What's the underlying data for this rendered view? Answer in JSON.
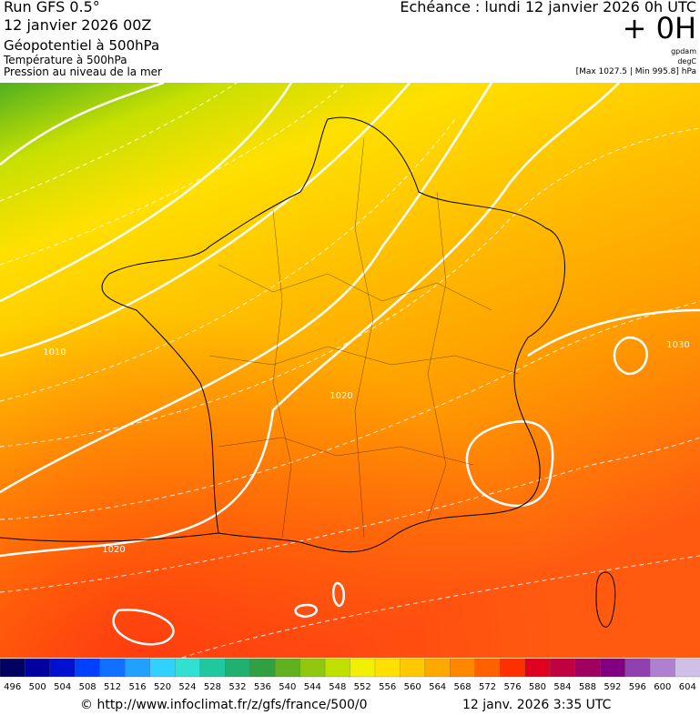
{
  "header": {
    "run": "Run GFS 0.5°",
    "date": "12 janvier 2026 00Z",
    "field1": "Géopotentiel à 500hPa",
    "field2": "Température à 500hPa",
    "field3": "Pression au niveau de la mer",
    "forecast": "Echéance : lundi 12 janvier 2026 0h UTC",
    "lead": "+ 0H",
    "unit1": "gpdam",
    "unit2": "degC",
    "pressure_range": "[Max 1027.5 | Min 995.8] hPa"
  },
  "map": {
    "contour_labels": [
      "1010",
      "1020",
      "1030",
      "1020"
    ]
  },
  "legend": {
    "labels": [
      496,
      500,
      504,
      508,
      512,
      516,
      520,
      524,
      528,
      532,
      536,
      540,
      544,
      548,
      552,
      556,
      560,
      564,
      568,
      572,
      576,
      580,
      584,
      588,
      592,
      596,
      600,
      604
    ],
    "colors": [
      "#000060",
      "#0000a0",
      "#0010d0",
      "#0040ff",
      "#1070ff",
      "#20a0ff",
      "#30d0ff",
      "#30e0d0",
      "#20c8a0",
      "#20b070",
      "#30a040",
      "#60b020",
      "#90c810",
      "#c0e000",
      "#f0f000",
      "#ffe000",
      "#ffc800",
      "#ffa800",
      "#ff8800",
      "#ff6000",
      "#ff3000",
      "#e00020",
      "#c00040",
      "#a00060",
      "#800080",
      "#9040b0",
      "#b080d0",
      "#d0c0e8"
    ]
  },
  "footer": {
    "source": "© http://www.infoclimat.fr/z/gfs/france/500/0",
    "timestamp": "12 janv. 2026  3:35 UTC"
  }
}
